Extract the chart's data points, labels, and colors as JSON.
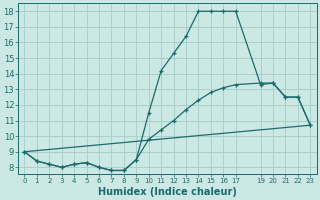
{
  "xlabel": "Humidex (Indice chaleur)",
  "background_color": "#cce8e4",
  "grid_color": "#aacfca",
  "line_color": "#1a6b6b",
  "x_ticks": [
    0,
    1,
    2,
    3,
    4,
    5,
    6,
    7,
    8,
    9,
    10,
    11,
    12,
    13,
    14,
    15,
    16,
    17,
    19,
    20,
    21,
    22,
    23
  ],
  "y_ticks": [
    8,
    9,
    10,
    11,
    12,
    13,
    14,
    15,
    16,
    17,
    18
  ],
  "ylim": [
    7.6,
    18.5
  ],
  "xlim": [
    -0.5,
    23.5
  ],
  "series1_x": [
    0,
    1,
    2,
    3,
    4,
    5,
    6,
    7,
    8,
    9,
    10,
    11,
    12,
    13,
    14,
    15,
    16,
    17,
    19,
    20,
    21,
    22,
    23
  ],
  "series1_y": [
    9.0,
    8.4,
    8.2,
    8.0,
    8.2,
    8.3,
    8.0,
    7.8,
    7.8,
    8.5,
    11.5,
    14.2,
    15.3,
    16.4,
    18.0,
    18.0,
    18.0,
    18.0,
    13.3,
    13.4,
    12.5,
    12.5,
    10.7
  ],
  "series2_x": [
    0,
    1,
    2,
    3,
    4,
    5,
    6,
    7,
    8,
    9,
    10,
    11,
    12,
    13,
    14,
    15,
    16,
    17,
    19,
    20,
    21,
    22,
    23
  ],
  "series2_y": [
    9.0,
    8.4,
    8.2,
    8.0,
    8.2,
    8.3,
    8.0,
    7.8,
    7.8,
    8.5,
    9.8,
    10.4,
    11.0,
    11.7,
    12.3,
    12.8,
    13.1,
    13.3,
    13.4,
    13.4,
    12.5,
    12.5,
    10.7
  ],
  "series3_x": [
    0,
    23
  ],
  "series3_y": [
    9.0,
    10.7
  ]
}
